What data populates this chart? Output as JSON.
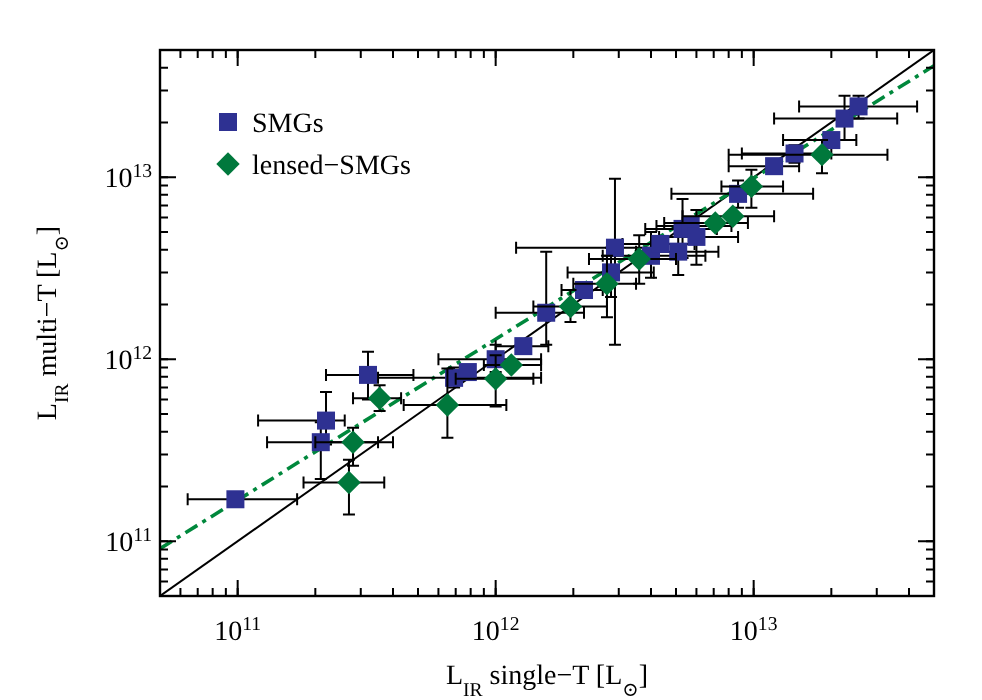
{
  "chart_data": {
    "type": "scatter",
    "xlabel": "L$_{IR}$ single−T [L$_{⊙}$]",
    "ylabel": "L$_{IR}$ multi−T [L$_{⊙}$]",
    "log": "xy",
    "xlim": [
      50000000000.0,
      50000000000000.0
    ],
    "ylim": [
      50000000000.0,
      50000000000000.0
    ],
    "xticks": [
      {
        "value": 100000000000.0,
        "label": "10$^{11}$"
      },
      {
        "value": 1000000000000.0,
        "label": "10$^{12}$"
      },
      {
        "value": 10000000000000.0,
        "label": "10$^{13}$"
      }
    ],
    "yticks": [
      {
        "value": 100000000000.0,
        "label": "10$^{11}$"
      },
      {
        "value": 1000000000000.0,
        "label": "10$^{12}$"
      },
      {
        "value": 10000000000000.0,
        "label": "10$^{13}$"
      }
    ],
    "legend": "top left",
    "grid": false,
    "series": [
      {
        "name": "SMGs",
        "marker": "square",
        "color": "#2e3192",
        "x": [
          98000000000.0,
          210000000000.0,
          220000000000.0,
          320000000000.0,
          690000000000.0,
          780000000000.0,
          1000000000000.0,
          1280000000000.0,
          1570000000000.0,
          2200000000000.0,
          2900000000000.0,
          2800000000000.0,
          4000000000000.0,
          4350000000000.0,
          5100000000000.0,
          5300000000000.0,
          5700000000000.0,
          6000000000000.0,
          8700000000000.0,
          12000000000000.0,
          14400000000000.0,
          20000000000000.0,
          22500000000000.0,
          25500000000000.0
        ],
        "values": [
          170000000000.0,
          350000000000.0,
          460000000000.0,
          820000000000.0,
          790000000000.0,
          850000000000.0,
          1000000000000.0,
          1180000000000.0,
          1800000000000.0,
          2400000000000.0,
          4100000000000.0,
          3000000000000.0,
          3700000000000.0,
          4300000000000.0,
          3900000000000.0,
          5200000000000.0,
          5400000000000.0,
          4700000000000.0,
          8100000000000.0,
          11500000000000.0,
          13500000000000.0,
          16000000000000.0,
          21000000000000.0,
          24500000000000.0
        ],
        "xerrors": [
          [
            64000000000.0,
            170000000000.0
          ],
          [
            130000000000.0,
            350000000000.0
          ],
          [
            120000000000.0,
            260000000000.0
          ],
          [
            220000000000.0,
            480000000000.0
          ],
          [
            350000000000.0,
            1500000000000.0
          ],
          null,
          [
            600000000000.0,
            1500000000000.0
          ],
          [
            1000000000000.0,
            1600000000000.0
          ],
          [
            1000000000000.0,
            2200000000000.0
          ],
          [
            1800000000000.0,
            2600000000000.0
          ],
          [
            1200000000000.0,
            4000000000000.0
          ],
          [
            1900000000000.0,
            4100000000000.0
          ],
          [
            2600000000000.0,
            6500000000000.0
          ],
          [
            3100000000000.0,
            5900000000000.0
          ],
          [
            3500000000000.0,
            7300000000000.0
          ],
          [
            3800000000000.0,
            7200000000000.0
          ],
          [
            4200000000000.0,
            8200000000000.0
          ],
          [
            4300000000000.0,
            8700000000000.0
          ],
          [
            4800000000000.0,
            17000000000000.0
          ],
          [
            8000000000000.0,
            15000000000000.0
          ],
          [
            9000000000000.0,
            20000000000000.0
          ],
          [
            13000000000000.0,
            25000000000000.0
          ],
          [
            12000000000000.0,
            36000000000000.0
          ],
          [
            15000000000000.0,
            43000000000000.0
          ]
        ],
        "errors": [
          null,
          [
            220000000000.0,
            450000000000.0
          ],
          [
            340000000000.0,
            660000000000.0
          ],
          [
            600000000000.0,
            1100000000000.0
          ],
          [
            700000000000.0,
            900000000000.0
          ],
          null,
          [
            850000000000.0,
            1200000000000.0
          ],
          null,
          [
            1200000000000.0,
            3900000000000.0
          ],
          null,
          [
            1200000000000.0,
            9800000000000.0
          ],
          [
            2200000000000.0,
            4100000000000.0
          ],
          [
            2800000000000.0,
            5000000000000.0
          ],
          null,
          [
            2900000000000.0,
            5300000000000.0
          ],
          [
            3600000000000.0,
            7600000000000.0
          ],
          null,
          [
            3300000000000.0,
            6600000000000.0
          ],
          [
            6800000000000.0,
            9600000000000.0
          ],
          null,
          [
            12000000000000.0,
            15000000000000.0
          ],
          null,
          [
            16000000000000.0,
            28000000000000.0
          ],
          [
            21000000000000.0,
            28000000000000.0
          ]
        ]
      },
      {
        "name": "lensed−SMGs",
        "marker": "diamond",
        "color": "#00783c",
        "x": [
          355000000000.0,
          280000000000.0,
          270000000000.0,
          650000000000.0,
          1000000000000.0,
          1150000000000.0,
          1950000000000.0,
          2700000000000.0,
          3600000000000.0,
          7100000000000.0,
          8300000000000.0,
          9800000000000.0,
          18400000000000.0
        ],
        "values": [
          610000000000.0,
          350000000000.0,
          210000000000.0,
          560000000000.0,
          780000000000.0,
          930000000000.0,
          1950000000000.0,
          2600000000000.0,
          3550000000000.0,
          5600000000000.0,
          6100000000000.0,
          8900000000000.0,
          13300000000000.0
        ],
        "xerrors": [
          [
            280000000000.0,
            430000000000.0
          ],
          [
            200000000000.0,
            400000000000.0
          ],
          [
            180000000000.0,
            370000000000.0
          ],
          [
            440000000000.0,
            1100000000000.0
          ],
          [
            700000000000.0,
            1400000000000.0
          ],
          [
            900000000000.0,
            1500000000000.0
          ],
          [
            1400000000000.0,
            2700000000000.0
          ],
          [
            2000000000000.0,
            3500000000000.0
          ],
          [
            2300000000000.0,
            5000000000000.0
          ],
          [
            4500000000000.0,
            9500000000000.0
          ],
          [
            5300000000000.0,
            12000000000000.0
          ],
          [
            7500000000000.0,
            13000000000000.0
          ],
          [
            8000000000000.0,
            33000000000000.0
          ]
        ],
        "errors": [
          [
            520000000000.0,
            720000000000.0
          ],
          [
            260000000000.0,
            420000000000.0
          ],
          [
            140000000000.0,
            280000000000.0
          ],
          [
            370000000000.0,
            890000000000.0
          ],
          [
            550000000000.0,
            1050000000000.0
          ],
          null,
          [
            1600000000000.0,
            2400000000000.0
          ],
          [
            1700000000000.0,
            3700000000000.0
          ],
          [
            2600000000000.0,
            4800000000000.0
          ],
          null,
          null,
          [
            6800000000000.0,
            11000000000000.0
          ],
          [
            10500000000000.0,
            16000000000000.0
          ]
        ]
      },
      {
        "type": "line",
        "color": "#000000",
        "line_style": "solid",
        "x": [
          50000000000.0,
          50000000000000.0
        ],
        "values": [
          50000000000.0,
          50000000000000.0
        ]
      },
      {
        "type": "line",
        "color": "#00883c",
        "line_style": "dashed",
        "x": [
          50000000000.0,
          50000000000000.0
        ],
        "values": [
          91000000000.0,
          41000000000000.0
        ]
      }
    ]
  }
}
